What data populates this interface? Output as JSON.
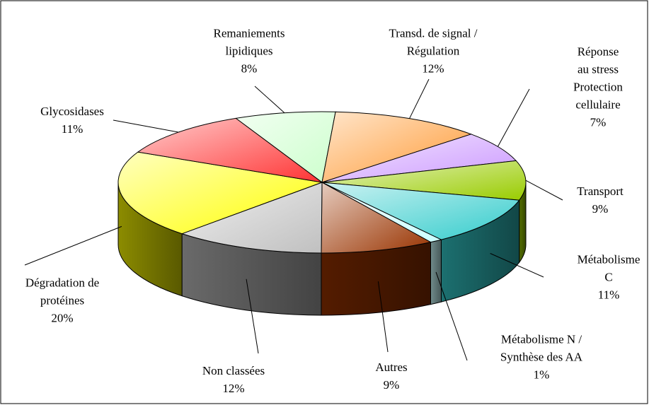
{
  "chart_data": {
    "type": "pie3d",
    "categories": [
      "Remaniements\nlipidiques",
      "Transd. de signal /\nRégulation",
      "Réponse au stress\nProtection\ncellulaire",
      "Transport",
      "Métabolisme C",
      "Métabolisme N /\nSynthèse des AA",
      "Autres",
      "Non classées",
      "Dégradation de\nprotéines",
      "Glycosidases"
    ],
    "values": [
      8,
      12,
      7,
      9,
      11,
      1,
      9,
      12,
      20,
      11
    ],
    "value_labels": [
      "8%",
      "12%",
      "7%",
      "9%",
      "11%",
      "1%",
      "9%",
      "12%",
      "20%",
      "11%"
    ],
    "colors": [
      "#ccffcc",
      "#ff9933",
      "#cc99ff",
      "#99cc00",
      "#33cccc",
      "#ccffff",
      "#993300",
      "#c0c0c0",
      "#ffff00",
      "#ff3333"
    ]
  }
}
